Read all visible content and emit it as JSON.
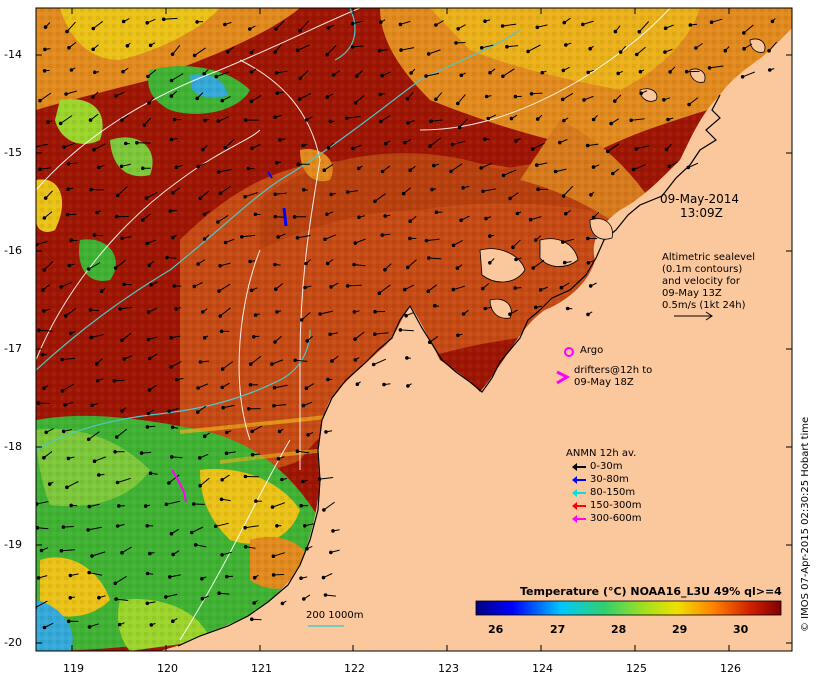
{
  "map": {
    "lat_ticks": [
      "-14",
      "-15",
      "-16",
      "-17",
      "-18",
      "-19",
      "-20"
    ],
    "lon_ticks": [
      "119",
      "120",
      "121",
      "122",
      "123",
      "124",
      "125",
      "126"
    ],
    "colors": {
      "land": "#fbc79d",
      "hot": "#9e1503",
      "warm": "#c64a14",
      "mid": "#e28a1e",
      "yellow": "#ebc217",
      "green": "#3fb233",
      "cool": "#34a9d8",
      "contour": "#ffffff",
      "isobath": "#4fc8c8"
    }
  },
  "date_label": {
    "date": "09-May-2014",
    "time": "13:09Z"
  },
  "altimetry": {
    "line1": "Altimetric sealevel",
    "line2": "(0.1m contours)",
    "line3": "and velocity for",
    "line4": "09-May 13Z",
    "line5": "0.5m/s (1kt 24h)"
  },
  "argo": {
    "label": "Argo"
  },
  "drifters": {
    "line1": "drifters@12h to",
    "line2": "09-May 18Z"
  },
  "anmn": {
    "title": "ANMN 12h av.",
    "rows": [
      {
        "label": "0-30m",
        "color": "#000000"
      },
      {
        "label": "30-80m",
        "color": "#0000ff"
      },
      {
        "label": "80-150m",
        "color": "#00e0e0"
      },
      {
        "label": "150-300m",
        "color": "#ff0000"
      },
      {
        "label": "300-600m",
        "color": "#ff00ff"
      }
    ]
  },
  "depth_legend": {
    "label": "200  1000m"
  },
  "colorbar": {
    "title": "Temperature (°C) NOAA16_L3U 49% ql>=4",
    "ticks": [
      "26",
      "27",
      "28",
      "29",
      "30"
    ]
  },
  "credit": "© IMOS 07-Apr-2015 02:30:25 Hobart time"
}
